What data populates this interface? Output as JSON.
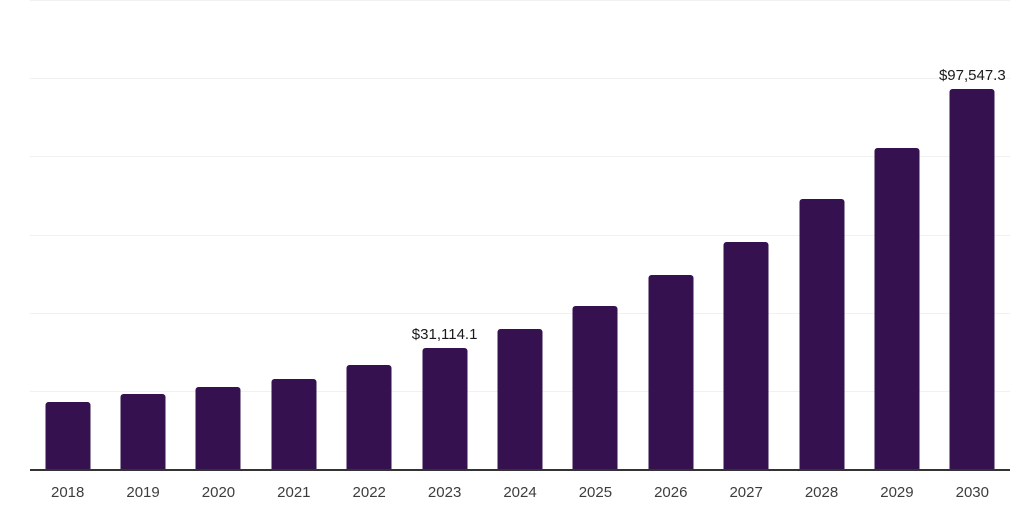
{
  "chart_data": {
    "type": "bar",
    "title": "",
    "xlabel": "",
    "ylabel": "",
    "categories": [
      "2018",
      "2019",
      "2020",
      "2021",
      "2022",
      "2023",
      "2024",
      "2025",
      "2026",
      "2027",
      "2028",
      "2029",
      "2030"
    ],
    "values": [
      17300,
      19400,
      21300,
      23400,
      26900,
      31114.1,
      36200,
      41900,
      49900,
      58400,
      69300,
      82500,
      97547.3
    ],
    "data_labels": [
      null,
      null,
      null,
      null,
      null,
      "$31,114.1",
      null,
      null,
      null,
      null,
      null,
      null,
      "$97,547.3"
    ],
    "ylim": [
      0,
      120000
    ],
    "gridline_step": 20000,
    "grid": true,
    "legend": "none",
    "colors": {
      "bar": "#36114F",
      "gridline": "#f1f1f1",
      "axis_line": "#333333",
      "tick_label": "#3d3d3d",
      "data_label": "#1a1a1a",
      "background": "#ffffff"
    }
  }
}
